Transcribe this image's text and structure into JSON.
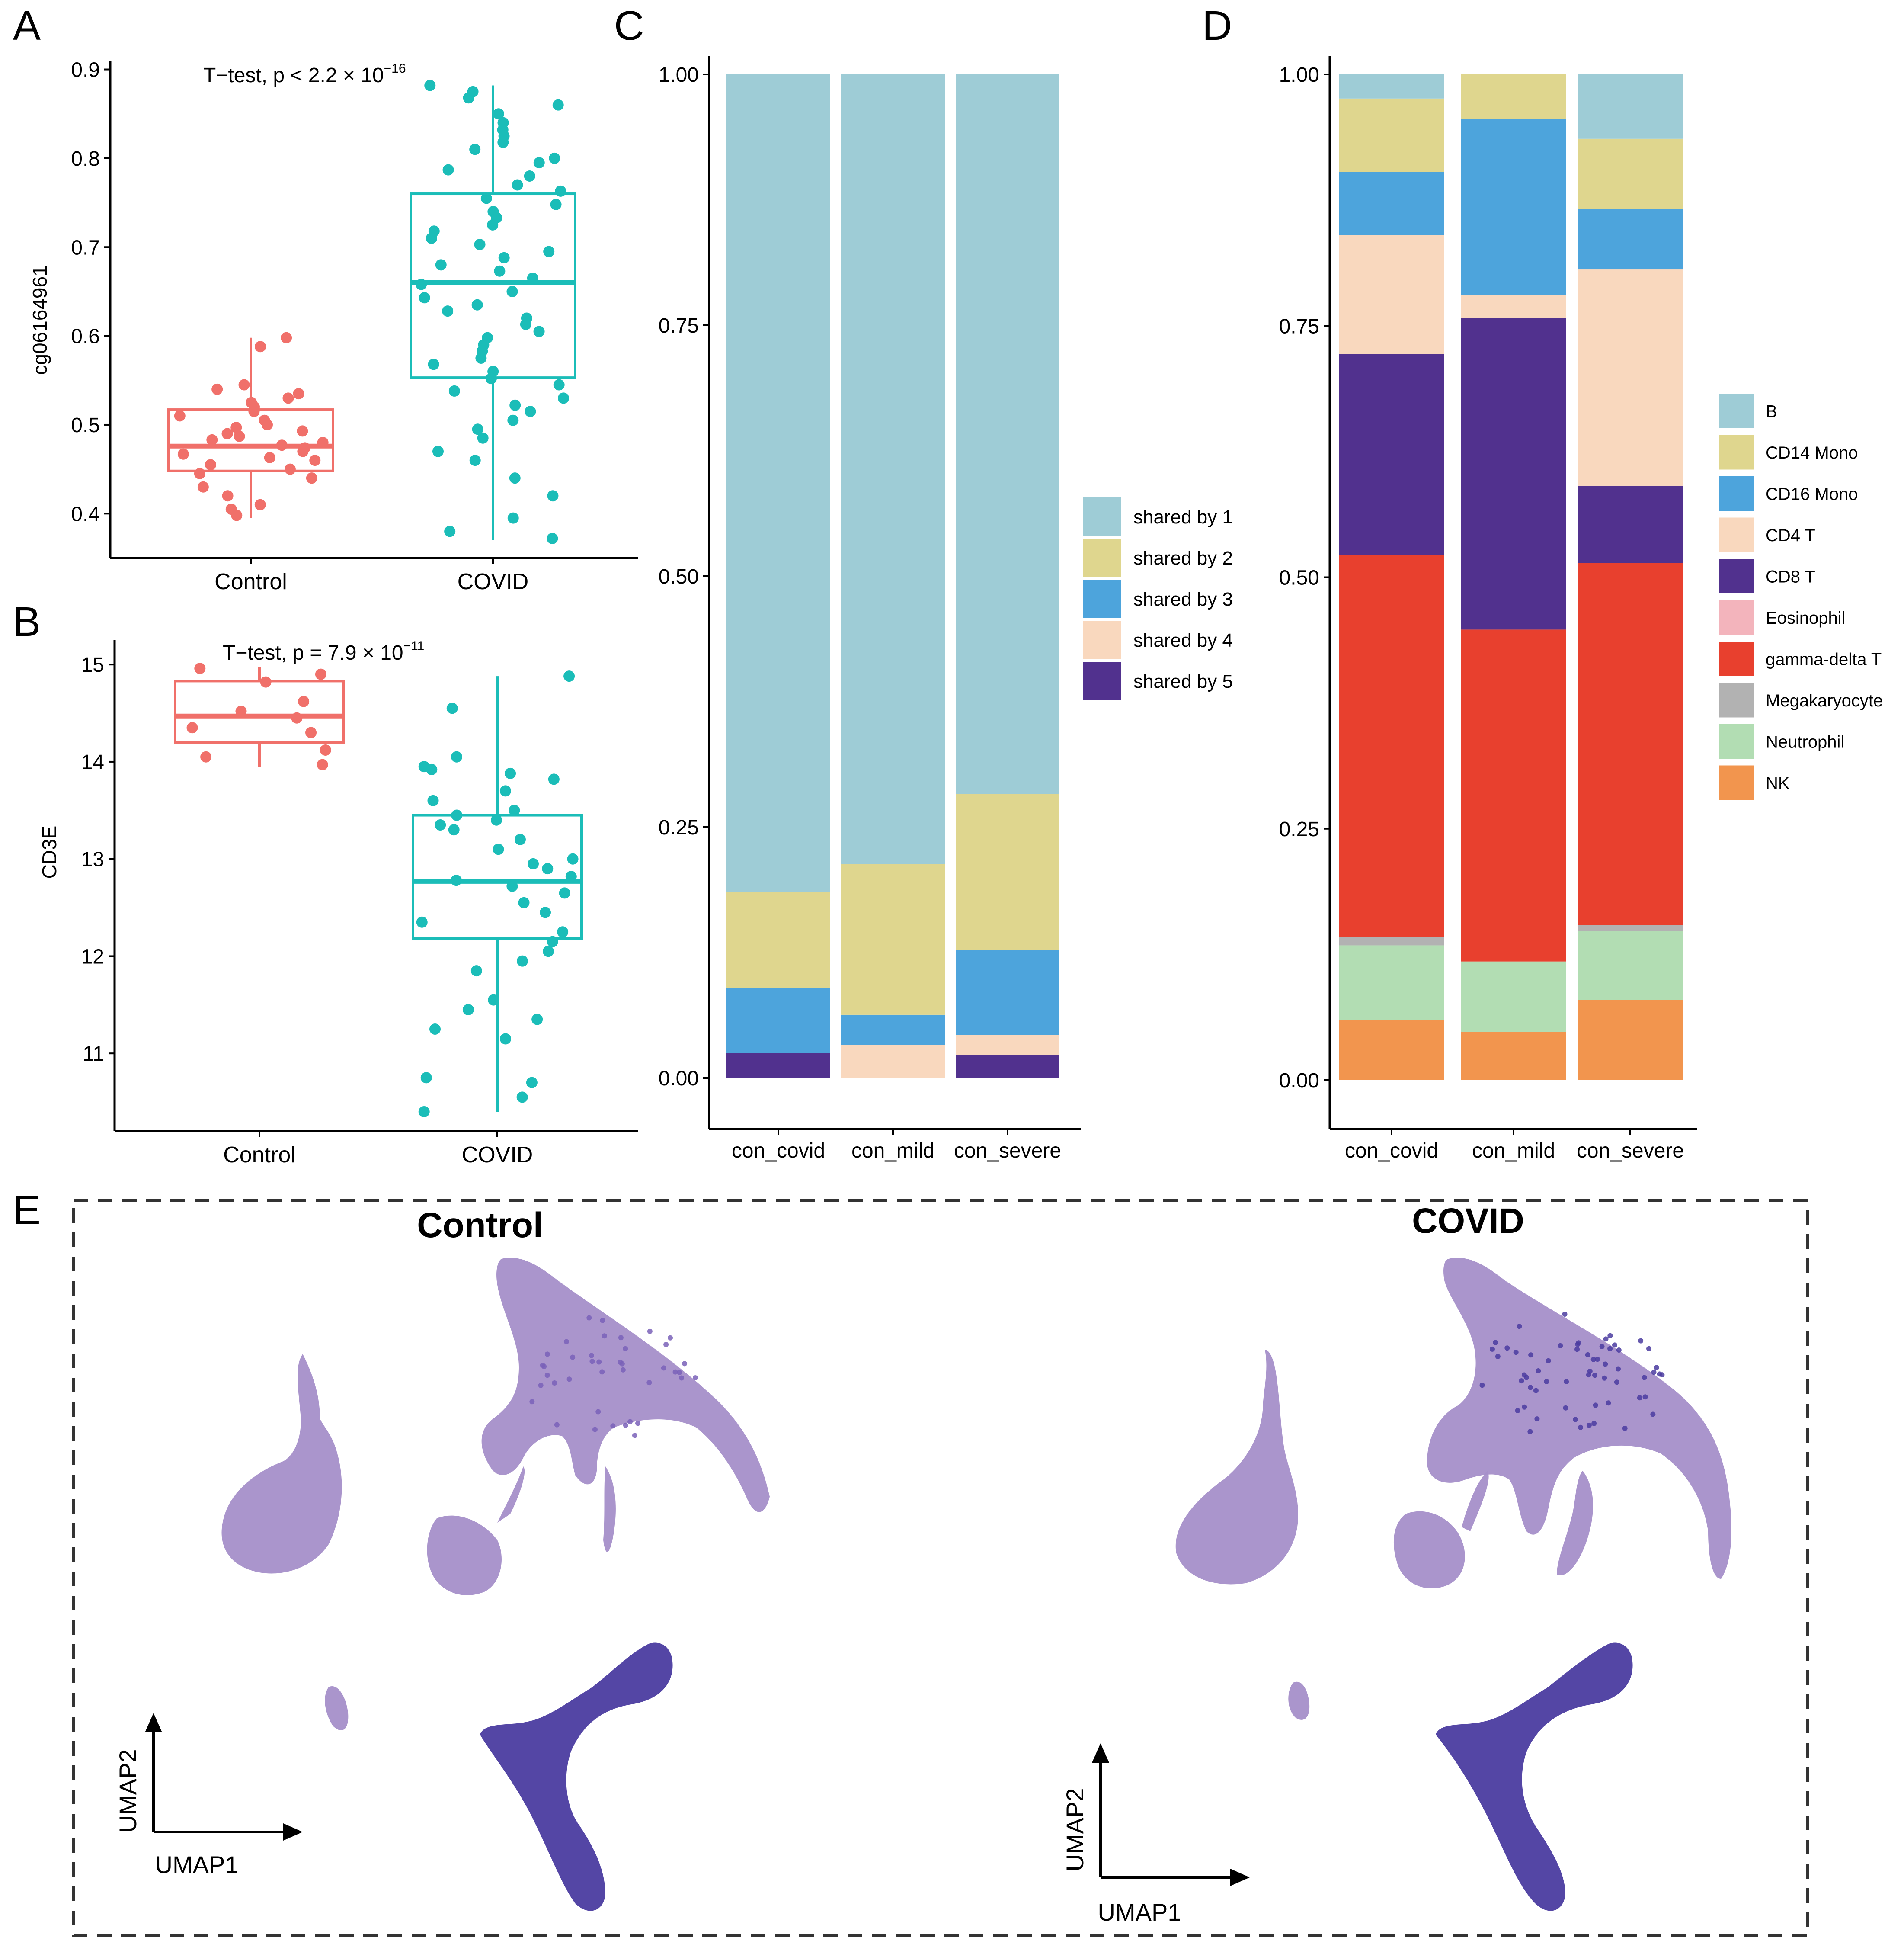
{
  "panel_letters": {
    "a": "A",
    "b": "B",
    "c": "C",
    "d": "D",
    "e": "E"
  },
  "colors": {
    "control": "#F0706A",
    "covid": "#1BBDB8",
    "shared": [
      "#9ECCD6",
      "#DFD68E",
      "#4DA4DC",
      "#F9D8BE",
      "#51318E"
    ],
    "celltypes": [
      "#9ECCD6",
      "#DFD68E",
      "#4DA4DC",
      "#F9D8BE",
      "#51318E",
      "#F3B4BC",
      "#E8402E",
      "#B2B2B2",
      "#B2DDB3",
      "#F2954E"
    ],
    "umap_light": "#A58FC9",
    "umap_dark": "#4B3CA0"
  },
  "chart_data": [
    {
      "id": "A",
      "type": "box",
      "title": "T−test, p < 2.2 × 10",
      "title_exponent": "−16",
      "ylabel": "cg06164961",
      "xlabel": "",
      "ylim": [
        0.35,
        0.91
      ],
      "yticks": [
        "0.4",
        "0.5",
        "0.6",
        "0.7",
        "0.8",
        "0.9"
      ],
      "ytick_values": [
        0.4,
        0.5,
        0.6,
        0.7,
        0.8,
        0.9
      ],
      "categories": [
        "Control",
        "COVID"
      ],
      "boxes": [
        {
          "group": "Control",
          "q1": 0.448,
          "median": 0.476,
          "q3": 0.517,
          "whisker_low": 0.395,
          "whisker_high": 0.598,
          "points": [
            0.598,
            0.588,
            0.545,
            0.54,
            0.535,
            0.53,
            0.525,
            0.52,
            0.515,
            0.51,
            0.505,
            0.5,
            0.497,
            0.493,
            0.49,
            0.487,
            0.483,
            0.48,
            0.477,
            0.474,
            0.47,
            0.467,
            0.463,
            0.46,
            0.455,
            0.45,
            0.445,
            0.44,
            0.43,
            0.42,
            0.41,
            0.405,
            0.398
          ]
        },
        {
          "group": "COVID",
          "q1": 0.553,
          "median": 0.66,
          "q3": 0.76,
          "whisker_low": 0.37,
          "whisker_high": 0.882,
          "points": [
            0.882,
            0.875,
            0.868,
            0.86,
            0.85,
            0.84,
            0.832,
            0.825,
            0.818,
            0.81,
            0.8,
            0.795,
            0.787,
            0.78,
            0.77,
            0.763,
            0.755,
            0.748,
            0.74,
            0.733,
            0.725,
            0.718,
            0.71,
            0.703,
            0.695,
            0.688,
            0.68,
            0.673,
            0.665,
            0.658,
            0.65,
            0.643,
            0.635,
            0.628,
            0.62,
            0.613,
            0.605,
            0.598,
            0.59,
            0.583,
            0.575,
            0.568,
            0.56,
            0.552,
            0.545,
            0.538,
            0.53,
            0.522,
            0.515,
            0.505,
            0.495,
            0.485,
            0.47,
            0.46,
            0.44,
            0.42,
            0.395,
            0.38,
            0.372
          ]
        }
      ]
    },
    {
      "id": "B",
      "type": "box",
      "title": "T−test, p = 7.9 × 10",
      "title_exponent": "−11",
      "ylabel": "CD3E",
      "xlabel": "",
      "ylim": [
        10.2,
        15.25
      ],
      "yticks": [
        "11",
        "12",
        "13",
        "14",
        "15"
      ],
      "ytick_values": [
        11,
        12,
        13,
        14,
        15
      ],
      "categories": [
        "Control",
        "COVID"
      ],
      "boxes": [
        {
          "group": "Control",
          "q1": 14.2,
          "median": 14.47,
          "q3": 14.83,
          "whisker_low": 13.95,
          "whisker_high": 14.97,
          "points": [
            14.96,
            14.9,
            14.82,
            14.62,
            14.52,
            14.45,
            14.35,
            14.3,
            14.12,
            14.05,
            13.97
          ]
        },
        {
          "group": "COVID",
          "q1": 12.18,
          "median": 12.77,
          "q3": 13.45,
          "whisker_low": 10.4,
          "whisker_high": 14.88,
          "points": [
            14.88,
            14.55,
            14.05,
            13.95,
            13.92,
            13.88,
            13.82,
            13.7,
            13.6,
            13.5,
            13.45,
            13.4,
            13.35,
            13.3,
            13.2,
            13.1,
            13.0,
            12.95,
            12.9,
            12.82,
            12.78,
            12.72,
            12.65,
            12.55,
            12.45,
            12.35,
            12.25,
            12.15,
            12.05,
            11.95,
            11.85,
            11.55,
            11.45,
            11.35,
            11.25,
            11.15,
            10.75,
            10.7,
            10.55,
            10.4
          ]
        }
      ]
    },
    {
      "id": "C",
      "type": "bar",
      "stacked": true,
      "categories": [
        "con_covid",
        "con_mild",
        "con_severe"
      ],
      "yticks": [
        "0.00",
        "0.25",
        "0.50",
        "0.75",
        "1.00"
      ],
      "ytick_values": [
        0,
        0.25,
        0.5,
        0.75,
        1.0
      ],
      "ylim": [
        0,
        1
      ],
      "series": [
        {
          "name": "shared by 5",
          "values": [
            0.025,
            0.0,
            0.023
          ]
        },
        {
          "name": "shared by 4",
          "values": [
            0.0,
            0.033,
            0.02
          ]
        },
        {
          "name": "shared by 3",
          "values": [
            0.065,
            0.03,
            0.085
          ]
        },
        {
          "name": "shared by 2",
          "values": [
            0.095,
            0.15,
            0.155
          ]
        },
        {
          "name": "shared by 1",
          "values": [
            0.815,
            0.787,
            0.717
          ]
        }
      ],
      "legend": [
        "shared by 1",
        "shared by 2",
        "shared by 3",
        "shared by 4",
        "shared by 5"
      ]
    },
    {
      "id": "D",
      "type": "bar",
      "stacked": true,
      "categories": [
        "con_covid",
        "con_mild",
        "con_severe"
      ],
      "yticks": [
        "0.00",
        "0.25",
        "0.50",
        "0.75",
        "1.00"
      ],
      "ytick_values": [
        0,
        0.25,
        0.5,
        0.75,
        1.0
      ],
      "ylim": [
        0,
        1
      ],
      "series": [
        {
          "name": "NK",
          "values": [
            0.06,
            0.048,
            0.08
          ]
        },
        {
          "name": "Neutrophil",
          "values": [
            0.074,
            0.07,
            0.068
          ]
        },
        {
          "name": "Megakaryocyte",
          "values": [
            0.008,
            0.0,
            0.006
          ]
        },
        {
          "name": "gamma-delta T",
          "values": [
            0.38,
            0.33,
            0.36
          ]
        },
        {
          "name": "Eosinophil",
          "values": [
            0.0,
            0.0,
            0.0
          ]
        },
        {
          "name": "CD8 T",
          "values": [
            0.2,
            0.31,
            0.077
          ]
        },
        {
          "name": "CD4 T",
          "values": [
            0.118,
            0.023,
            0.215
          ]
        },
        {
          "name": "CD16 Mono",
          "values": [
            0.063,
            0.175,
            0.06
          ]
        },
        {
          "name": "CD14 Mono",
          "values": [
            0.073,
            0.044,
            0.07
          ]
        },
        {
          "name": "B",
          "values": [
            0.024,
            0.0,
            0.064
          ]
        }
      ],
      "legend": [
        "B",
        "CD14 Mono",
        "CD16 Mono",
        "CD4 T",
        "CD8 T",
        "Eosinophil",
        "gamma-delta T",
        "Megakaryocyte",
        "Neutrophil",
        "NK"
      ]
    },
    {
      "id": "E",
      "type": "scatter",
      "panels": [
        {
          "title": "Control",
          "xlabel": "UMAP1",
          "ylabel": "UMAP2"
        },
        {
          "title": "COVID",
          "xlabel": "UMAP1",
          "ylabel": "UMAP2"
        }
      ]
    }
  ]
}
